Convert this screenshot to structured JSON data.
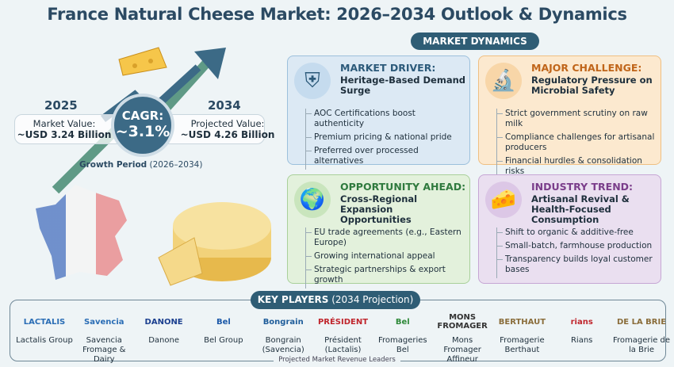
{
  "title": "France Natural Cheese Market: 2026–2034 Outlook & Dynamics",
  "market_size": {
    "year_start": "2025",
    "start_label": "Market Value:",
    "start_value": "~USD 3.24 Billion",
    "year_end": "2034",
    "end_label": "Projected Value:",
    "end_value": "~USD 4.26 Billion",
    "cagr_label": "CAGR:",
    "cagr_value": "~3.1%",
    "growth_period_label": "Growth Period",
    "growth_period": "(2026–2034)"
  },
  "dynamics": {
    "header": "MARKET DYNAMICS",
    "cards": [
      {
        "heading": "MARKET DRIVER:",
        "subheading": "Heritage-Based Demand Surge",
        "icon": "shield-check-icon",
        "color": "#2c5a7a",
        "points": [
          "AOC Certifications boost authenticity",
          "Premium pricing & national pride",
          "Preferred over processed alternatives"
        ]
      },
      {
        "heading": "MAJOR CHALLENGE:",
        "subheading": "Regulatory Pressure on Microbial Safety",
        "icon": "microscope-icon",
        "color": "#c0651a",
        "points": [
          "Strict government scrutiny on raw milk",
          "Compliance challenges for artisanal producers",
          "Financial hurdles & consolidation risks"
        ]
      },
      {
        "heading": "OPPORTUNITY AHEAD:",
        "subheading": "Cross-Regional Expansion Opportunities",
        "icon": "globe-arrows-icon",
        "color": "#2f7a3e",
        "points": [
          "EU trade agreements (e.g., Eastern Europe)",
          "Growing international appeal",
          "Strategic partnerships & export growth"
        ]
      },
      {
        "heading": "INDUSTRY TREND:",
        "subheading": "Artisanal Revival & Health-Focused Consumption",
        "icon": "hand-cheese-icon",
        "color": "#7a3d8a",
        "points": [
          "Shift to organic & additive-free",
          "Small-batch, farmhouse production",
          "Transparency builds loyal customer bases"
        ]
      }
    ]
  },
  "key_players": {
    "header_bold": "KEY PLAYERS",
    "header_rest": "(2034 Projection)",
    "footer": "Projected Market Revenue Leaders",
    "players": [
      {
        "logo": "LACTALIS",
        "name": "Lactalis Group"
      },
      {
        "logo": "Savencia",
        "name": "Savencia Fromage & Dairy"
      },
      {
        "logo": "DANONE",
        "name": "Danone"
      },
      {
        "logo": "Bel",
        "name": "Bel Group"
      },
      {
        "logo": "Bongrain",
        "name": "Bongrain (Savencia)"
      },
      {
        "logo": "PRÉSIDENT",
        "name": "Président (Lactalis)"
      },
      {
        "logo": "Bel",
        "name": "Fromageries Bel"
      },
      {
        "logo": "MONS FROMAGER",
        "name": "Mons Fromager Affineur"
      },
      {
        "logo": "BERTHAUT",
        "name": "Fromagerie Berthaut"
      },
      {
        "logo": "rians",
        "name": "Rians"
      },
      {
        "logo": "DE LA BRIE",
        "name": "Fromagerie de la Brie"
      }
    ]
  }
}
